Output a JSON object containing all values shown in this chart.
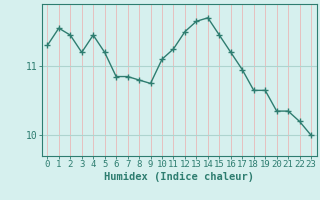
{
  "x": [
    0,
    1,
    2,
    3,
    4,
    5,
    6,
    7,
    8,
    9,
    10,
    11,
    12,
    13,
    14,
    15,
    16,
    17,
    18,
    19,
    20,
    21,
    22,
    23
  ],
  "y": [
    11.3,
    11.55,
    11.45,
    11.2,
    11.45,
    11.2,
    10.85,
    10.85,
    10.8,
    10.75,
    11.1,
    11.25,
    11.5,
    11.65,
    11.7,
    11.45,
    11.2,
    10.95,
    10.65,
    10.65,
    10.35,
    10.35,
    10.2,
    10.0
  ],
  "line_color": "#2e7d70",
  "marker": "+",
  "bg_color": "#d6f0ee",
  "vgrid_color": "#e8b8b8",
  "hgrid_color": "#aed4cf",
  "xlabel": "Humidex (Indice chaleur)",
  "xlabel_fontsize": 7.5,
  "tick_fontsize": 6.5,
  "yticks": [
    10,
    11
  ],
  "ylim": [
    9.7,
    11.9
  ],
  "xlim": [
    -0.5,
    23.5
  ]
}
